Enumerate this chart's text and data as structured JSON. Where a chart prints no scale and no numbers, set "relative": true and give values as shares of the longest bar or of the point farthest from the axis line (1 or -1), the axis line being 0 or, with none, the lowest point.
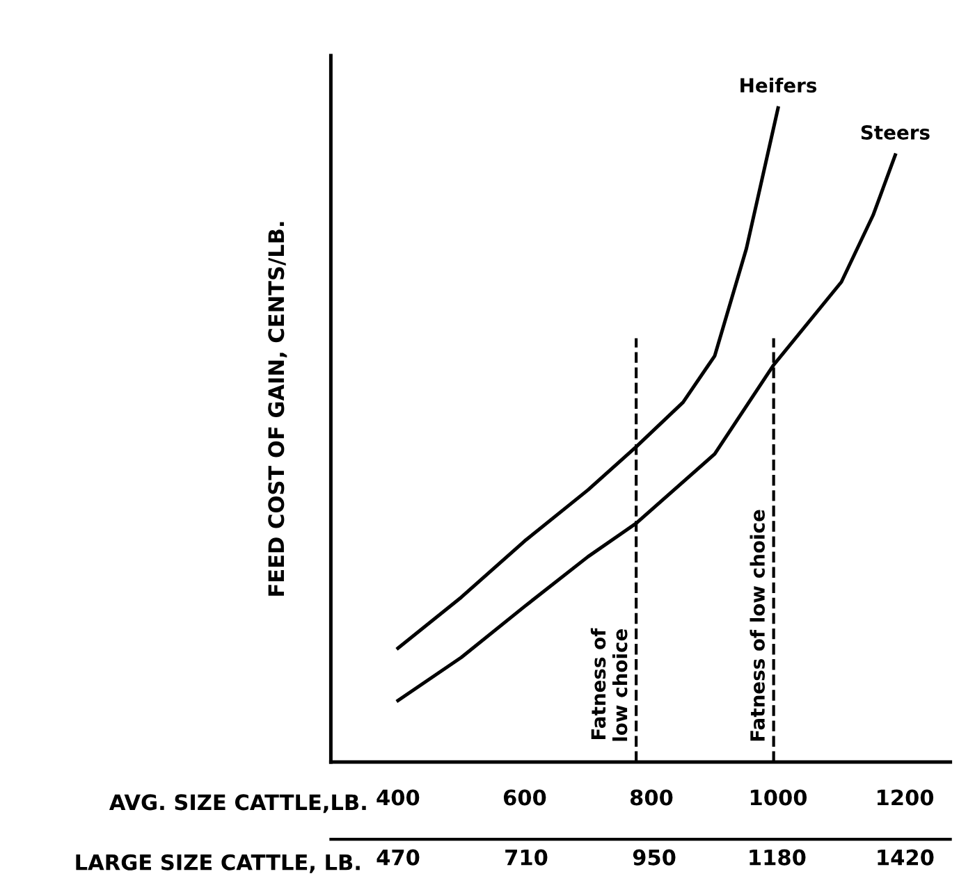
{
  "chart_data": {
    "type": "line",
    "relative": true,
    "ylabel": "FEED COST OF GAIN, CENTS/LB.",
    "xlabel": "AVG. SIZE CATTLE,LB.",
    "x2label": "LARGE SIZE CATTLE, LB.",
    "xlim": [
      294,
      1272
    ],
    "xticks": [
      400,
      600,
      800,
      1000,
      1200
    ],
    "x2lim": [
      344,
      1505
    ],
    "x2ticks": [
      470,
      710,
      950,
      1180,
      1420
    ],
    "series": [
      {
        "name": "Heifers",
        "color": "#000000",
        "x": [
          400,
          500,
          600,
          700,
          776,
          850,
          900,
          950,
          1000
        ],
        "values": [
          0.174,
          0.252,
          0.338,
          0.416,
          0.482,
          0.55,
          0.621,
          0.785,
          1.0
        ]
      },
      {
        "name": "Steers",
        "color": "#000000",
        "x": [
          400,
          500,
          600,
          700,
          776,
          900,
          993,
          1100,
          1150,
          1185
        ],
        "values": [
          0.094,
          0.16,
          0.238,
          0.314,
          0.365,
          0.471,
          0.607,
          0.734,
          0.836,
          0.928
        ]
      }
    ],
    "ref_lines": [
      {
        "axis": "x",
        "value": 776,
        "label": "Fatness of\nlow choice",
        "line_style": "dashed"
      },
      {
        "axis": "x",
        "value": 993,
        "label": "Fatness of low choice",
        "line_style": "dashed"
      }
    ],
    "legend": false,
    "grid": false,
    "marker": "none",
    "line_style": "solid"
  }
}
